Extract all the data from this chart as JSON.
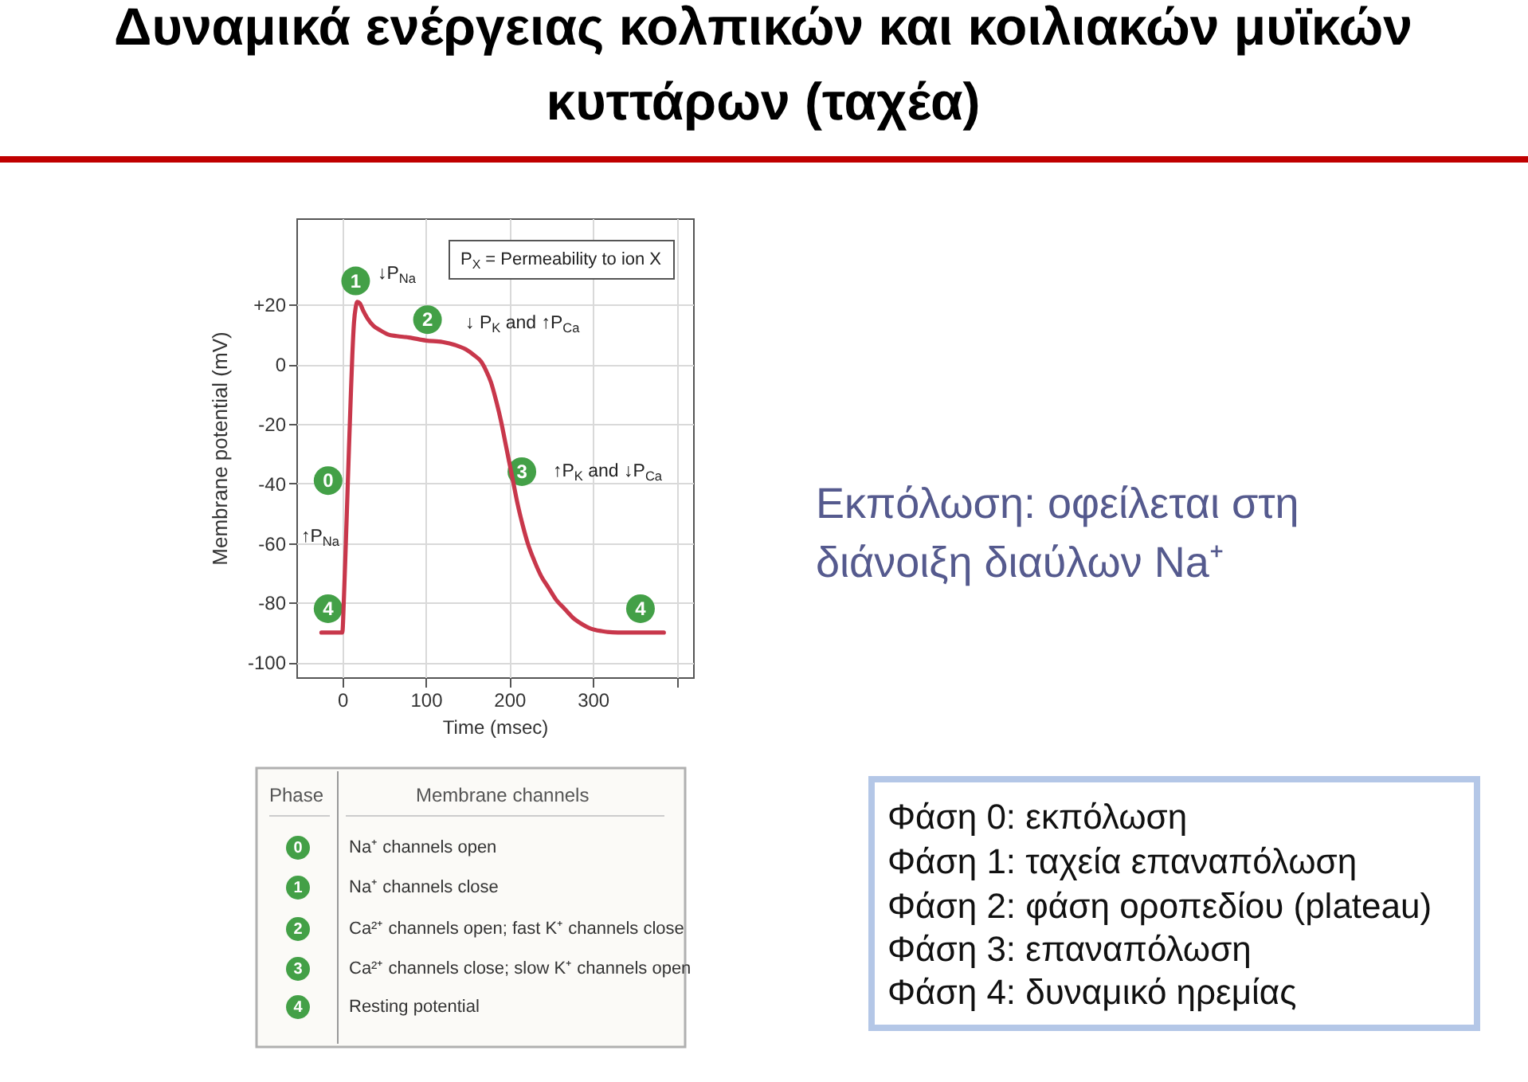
{
  "chart_data": {
    "type": "line",
    "title": "Δυναμικά ενέργειας κολπικών και κοιλιακών μυϊκών κυττάρων (ταχέα)",
    "xlabel": "Time (msec)",
    "ylabel": "Membrane potential (mV)",
    "x": [
      -25,
      0,
      2,
      4,
      6,
      8,
      10,
      12,
      14,
      16,
      18,
      21,
      25,
      30,
      37,
      45,
      55,
      65,
      80,
      100,
      120,
      135,
      148,
      158,
      166,
      172,
      178,
      184,
      190,
      195,
      200,
      205,
      210,
      216,
      222,
      230,
      238,
      247,
      256,
      266,
      276,
      286,
      296,
      310,
      330,
      385
    ],
    "series": [
      {
        "color": "#c8374b",
        "values": [
          -90,
          -90,
          -78,
          -62,
          -45,
          -28,
          -12,
          3,
          14,
          19,
          21,
          20.5,
          18,
          15.5,
          13,
          11.5,
          10,
          9.5,
          9,
          8,
          7.5,
          6.5,
          5,
          3,
          1,
          -2,
          -6,
          -12,
          -19,
          -26,
          -33,
          -40,
          -47,
          -54,
          -60,
          -66,
          -71,
          -75,
          -79,
          -82,
          -85,
          -87,
          -88.5,
          -89.5,
          -90,
          -90
        ]
      }
    ],
    "xlim": [
      -55,
      420
    ],
    "ylim": [
      -105,
      49
    ],
    "xticks": [
      0,
      100,
      200,
      300,
      {
        "value": 400,
        "label": null
      }
    ],
    "yticks": [
      -100,
      -80,
      -60,
      -40,
      -20,
      0,
      {
        "value": 20,
        "label": "+20"
      }
    ],
    "grid": true,
    "line_style": "solid",
    "annotations": [
      {
        "text": "1",
        "x": 16,
        "y": 28
      },
      "↓P$_{Na}$",
      {
        "text": "2",
        "x": 102,
        "y": 15
      },
      "↓ P$_{K}$ and ↑P$_{Ca}$",
      {
        "text": "0",
        "x": -17,
        "y": -39
      },
      "↑P$_{Na}$",
      {
        "text": "3",
        "x": 215,
        "y": -36
      },
      "↑P$_{K}$ and ↓P$_{Ca}$",
      {
        "text": "4",
        "x": -17,
        "y": -82
      },
      {
        "text": "4",
        "x": 357,
        "y": -82
      },
      "P$_{X}$ = Permeability to ion X",
      "Εκπόλωση: οφείλεται στη διάνοιξη διαύλων Na⁺",
      "Φάση 0: εκπόλωση",
      "Φάση 1: ταχεία επαναπόλωση",
      "Φάση 2: φάση οροπεδίου (plateau)",
      "Φάση 3: επαναπόλωση",
      "Φάση 4: δυναμικό ηρεμίας",
      "Phase",
      "Membrane channels",
      "0",
      "Na⁺ channels open",
      "1",
      "Na⁺ channels close",
      "2",
      "Ca²⁺ channels open; fast K⁺ channels close",
      "3",
      "Ca²⁺ channels close; slow K⁺ channels open",
      "4",
      "Resting potential"
    ]
  }
}
